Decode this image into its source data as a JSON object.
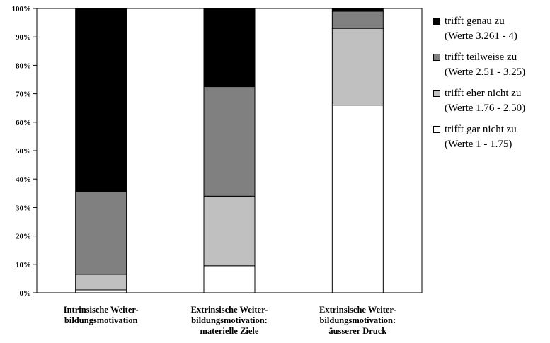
{
  "chart_data": {
    "type": "bar",
    "stacked": true,
    "percent": true,
    "categories": [
      [
        "Intrinsische Weiter-",
        "bildungsmotivation"
      ],
      [
        "Extrinsische Weiter-",
        "bildungsmotivation:",
        "materielle Ziele"
      ],
      [
        "Extrinsische Weiter-",
        "bildungsmotivation:",
        "äusserer Druck"
      ]
    ],
    "series": [
      {
        "name": "trifft gar nicht zu",
        "range": "(Werte 1 - 1.75)",
        "color": "#ffffff",
        "values": [
          1,
          9.5,
          66
        ]
      },
      {
        "name": "trifft eher nicht zu",
        "range": "(Werte 1.76 - 2.50)",
        "color": "#c0c0c0",
        "values": [
          5.5,
          24.5,
          27
        ]
      },
      {
        "name": "trifft teilweise zu",
        "range": "(Werte 2.51 - 3.25)",
        "color": "#808080",
        "values": [
          29,
          38.5,
          6
        ]
      },
      {
        "name": "trifft genau zu",
        "range": "(Werte 3.261 - 4)",
        "color": "#000000",
        "values": [
          64.5,
          27.5,
          1
        ]
      }
    ],
    "ylim": [
      0,
      100
    ],
    "yticks": [
      "0%",
      "10%",
      "20%",
      "30%",
      "40%",
      "50%",
      "60%",
      "70%",
      "80%",
      "90%",
      "100%"
    ],
    "xlabel": "",
    "ylabel": "",
    "grid": false,
    "legend_position": "right"
  },
  "legend_order": [
    3,
    2,
    1,
    0
  ]
}
